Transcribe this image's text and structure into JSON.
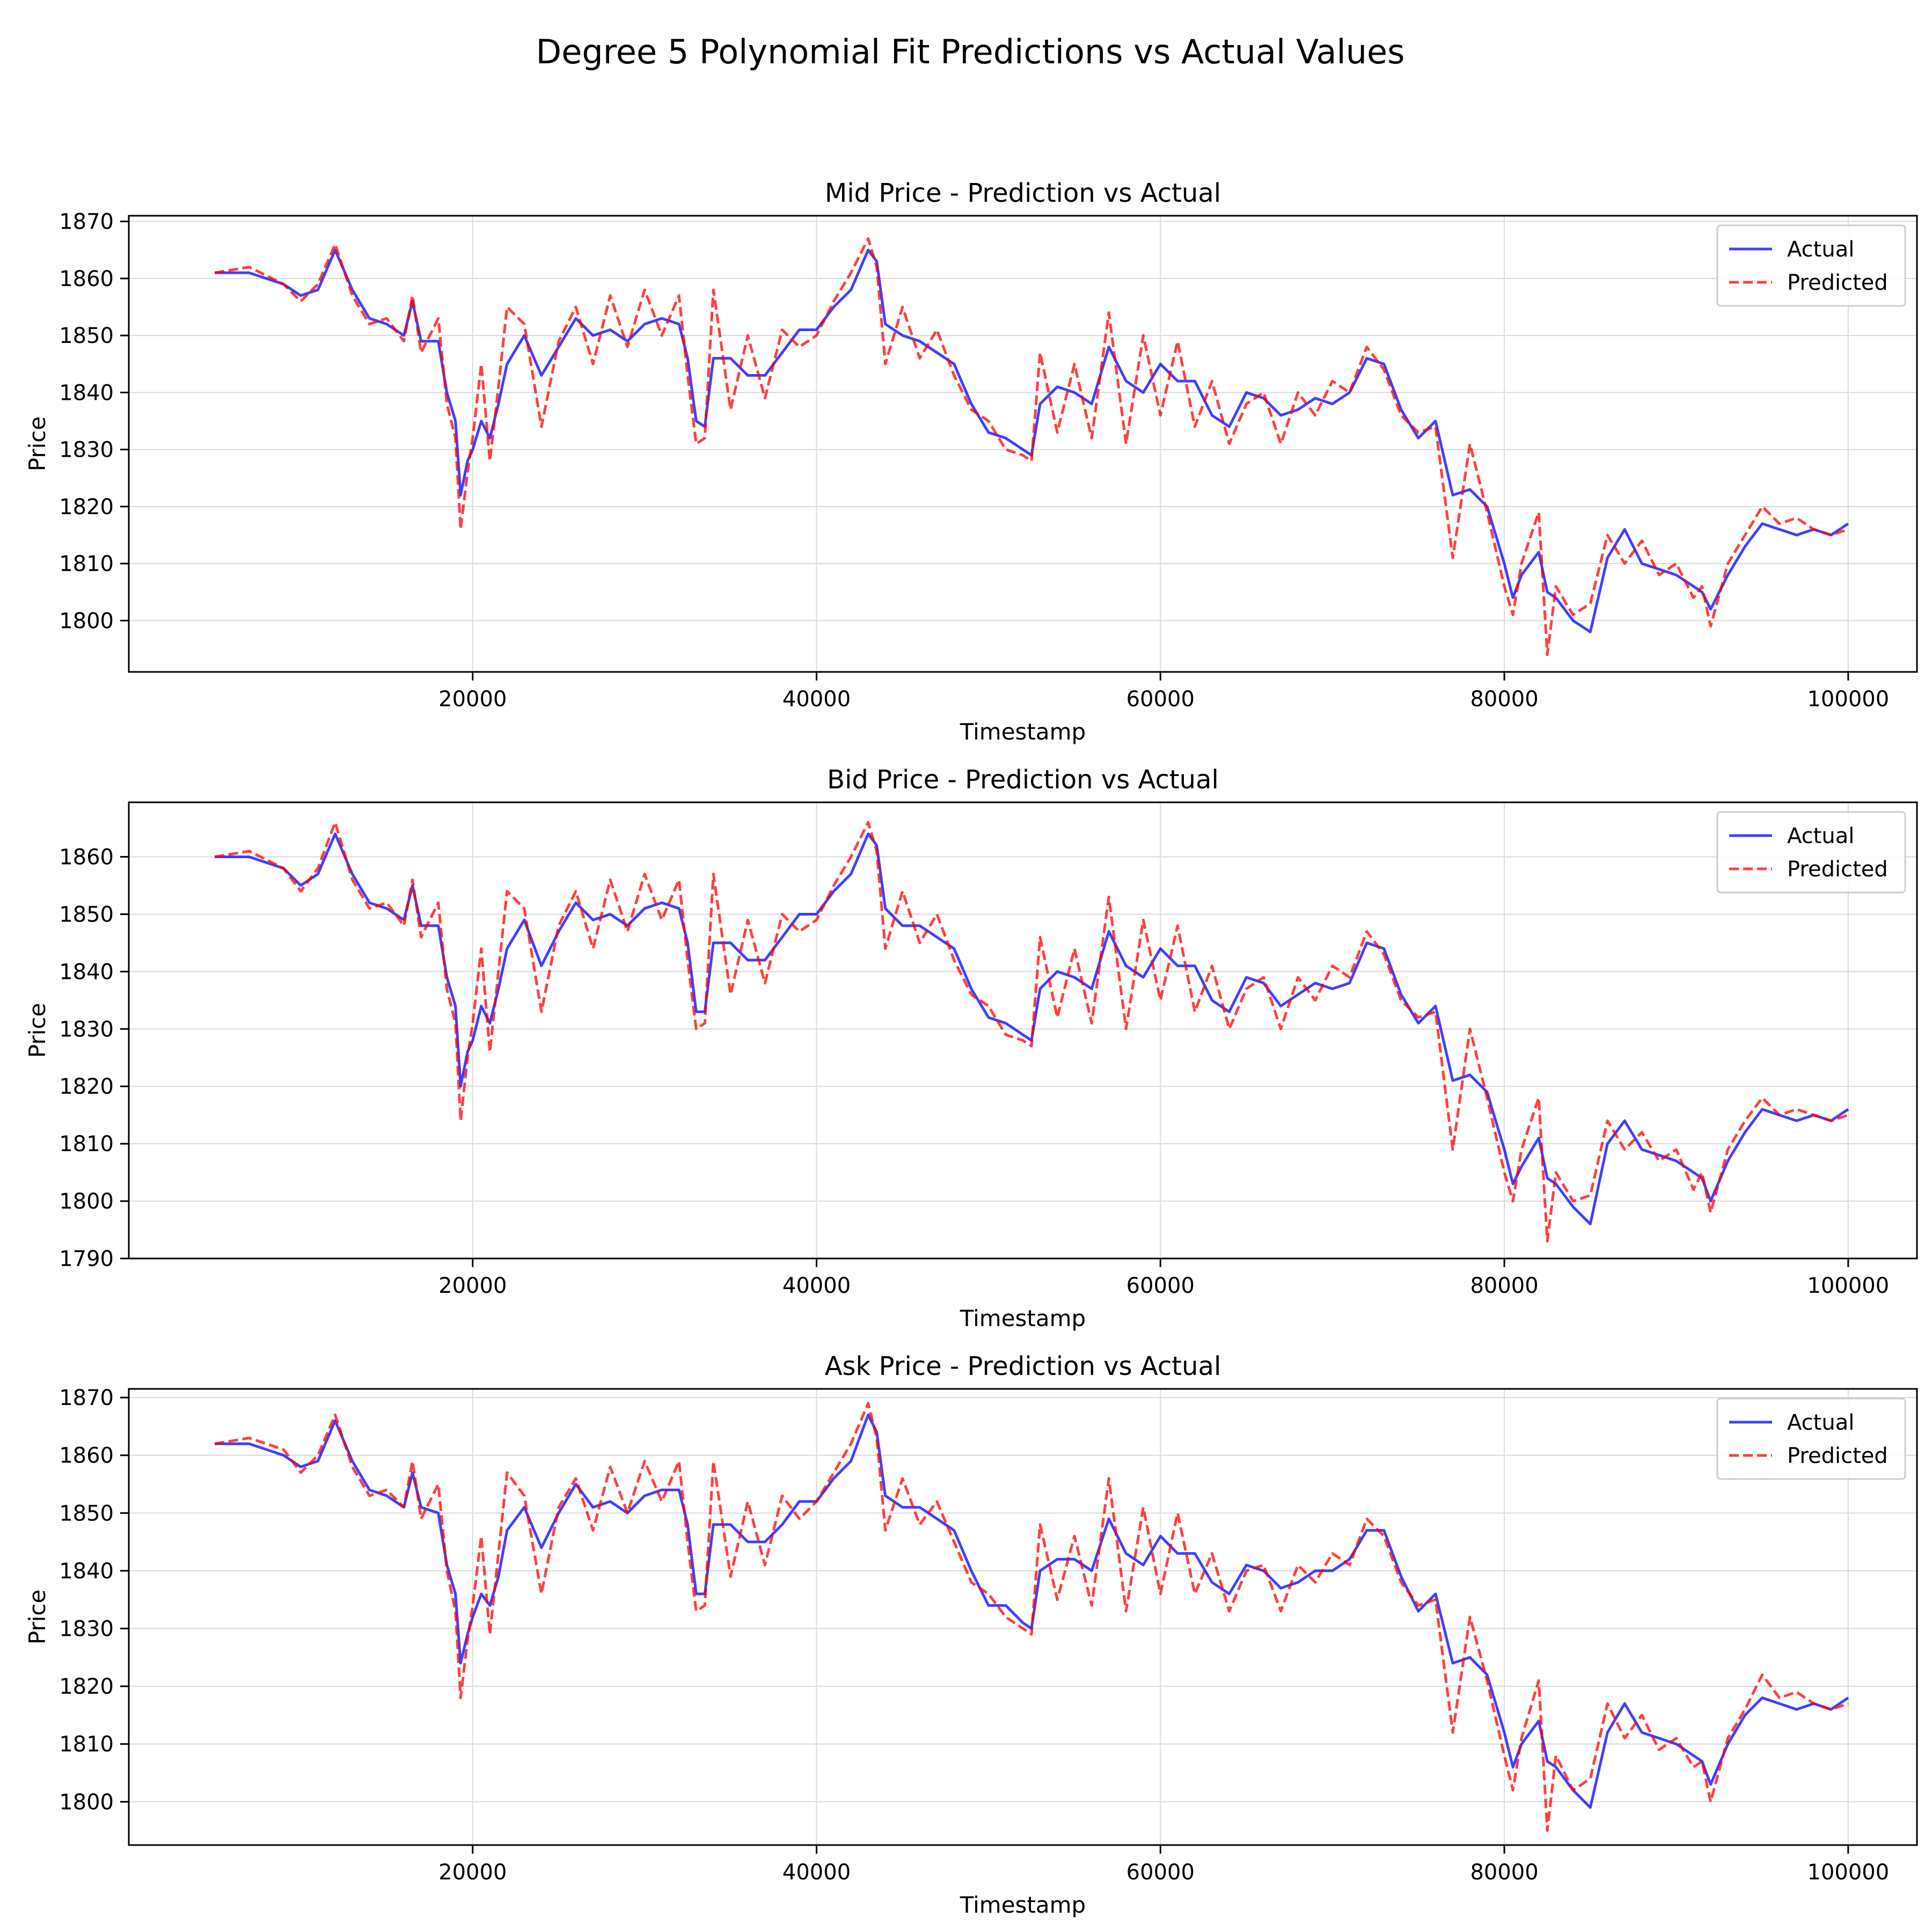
{
  "figure": {
    "title": "Degree 5 Polynomial Fit Predictions vs Actual Values"
  },
  "colors": {
    "actual": "#0000ff",
    "predicted": "#ff0000",
    "grid": "#d9d9d9",
    "axis": "#000000"
  },
  "chart_data": [
    {
      "type": "line",
      "title": "Mid Price - Prediction vs Actual",
      "xlabel": "Timestamp",
      "ylabel": "Price",
      "xlim": [
        0,
        104000
      ],
      "ylim": [
        1791,
        1871
      ],
      "xticks": [
        20000,
        40000,
        60000,
        80000,
        100000
      ],
      "yticks": [
        1800,
        1810,
        1820,
        1830,
        1840,
        1850,
        1860,
        1870
      ],
      "grid": true,
      "legend": "top-right",
      "x": [
        5000,
        7000,
        9000,
        10000,
        11000,
        12000,
        13000,
        14000,
        15000,
        16000,
        16500,
        17000,
        18000,
        18500,
        19000,
        19300,
        19700,
        20000,
        20500,
        21000,
        21500,
        22000,
        23000,
        24000,
        25000,
        26000,
        27000,
        28000,
        29000,
        30000,
        31000,
        32000,
        32500,
        33000,
        33500,
        34000,
        35000,
        36000,
        37000,
        38000,
        39000,
        40000,
        41000,
        42000,
        43000,
        43500,
        44000,
        45000,
        46000,
        47000,
        48000,
        49000,
        50000,
        51000,
        52000,
        52500,
        53000,
        54000,
        55000,
        56000,
        57000,
        58000,
        59000,
        60000,
        61000,
        62000,
        63000,
        64000,
        65000,
        66000,
        67000,
        68000,
        69000,
        70000,
        71000,
        72000,
        73000,
        74000,
        75000,
        76000,
        77000,
        78000,
        79000,
        80000,
        80500,
        81000,
        82000,
        82500,
        83000,
        84000,
        85000,
        86000,
        87000,
        88000,
        89000,
        90000,
        91000,
        91500,
        92000,
        93000,
        94000,
        95000,
        96000,
        97000,
        98000,
        99000,
        100000
      ],
      "series": [
        {
          "name": "Actual",
          "values": [
            1861,
            1861,
            1859,
            1857,
            1858,
            1865,
            1858,
            1853,
            1852,
            1850,
            1856,
            1849,
            1849,
            1840,
            1835,
            1822,
            1828,
            1830,
            1835,
            1832,
            1838,
            1845,
            1850,
            1843,
            1848,
            1853,
            1850,
            1851,
            1849,
            1852,
            1853,
            1852,
            1846,
            1835,
            1834,
            1846,
            1846,
            1843,
            1843,
            1847,
            1851,
            1851,
            1855,
            1858,
            1865,
            1863,
            1852,
            1850,
            1849,
            1847,
            1845,
            1838,
            1833,
            1832,
            1830,
            1829,
            1838,
            1841,
            1840,
            1838,
            1848,
            1842,
            1840,
            1845,
            1842,
            1842,
            1836,
            1834,
            1840,
            1839,
            1836,
            1837,
            1839,
            1838,
            1840,
            1846,
            1845,
            1837,
            1832,
            1835,
            1822,
            1823,
            1820,
            1810,
            1804,
            1808,
            1812,
            1805,
            1804,
            1800,
            1798,
            1811,
            1816,
            1810,
            1809,
            1808,
            1806,
            1805,
            1802,
            1808,
            1813,
            1817,
            1816,
            1815,
            1816,
            1815,
            1817
          ]
        },
        {
          "name": "Predicted",
          "values": [
            1861,
            1862,
            1859,
            1856,
            1859,
            1866,
            1857,
            1852,
            1853,
            1849,
            1857,
            1847,
            1853,
            1838,
            1832,
            1816,
            1826,
            1832,
            1845,
            1828,
            1841,
            1855,
            1852,
            1834,
            1849,
            1855,
            1845,
            1857,
            1848,
            1858,
            1850,
            1857,
            1843,
            1831,
            1832,
            1858,
            1837,
            1850,
            1839,
            1851,
            1848,
            1850,
            1856,
            1861,
            1867,
            1862,
            1845,
            1855,
            1846,
            1851,
            1843,
            1837,
            1835,
            1830,
            1829,
            1828,
            1847,
            1833,
            1845,
            1832,
            1854,
            1831,
            1850,
            1836,
            1849,
            1834,
            1842,
            1831,
            1838,
            1840,
            1831,
            1840,
            1836,
            1842,
            1840,
            1848,
            1844,
            1836,
            1833,
            1834,
            1811,
            1831,
            1819,
            1806,
            1801,
            1810,
            1819,
            1794,
            1806,
            1801,
            1803,
            1815,
            1810,
            1814,
            1808,
            1810,
            1804,
            1806,
            1799,
            1810,
            1815,
            1820,
            1817,
            1818,
            1816,
            1815,
            1816
          ]
        }
      ]
    },
    {
      "type": "line",
      "title": "Bid Price - Prediction vs Actual",
      "xlabel": "Timestamp",
      "ylabel": "Price",
      "xlim": [
        0,
        104000
      ],
      "ylim": [
        1790,
        1869.5
      ],
      "xticks": [
        20000,
        40000,
        60000,
        80000,
        100000
      ],
      "yticks": [
        1790,
        1800,
        1810,
        1820,
        1830,
        1840,
        1850,
        1860
      ],
      "grid": true,
      "legend": "top-right",
      "x": [
        5000,
        7000,
        9000,
        10000,
        11000,
        12000,
        13000,
        14000,
        15000,
        16000,
        16500,
        17000,
        18000,
        18500,
        19000,
        19300,
        19700,
        20000,
        20500,
        21000,
        21500,
        22000,
        23000,
        24000,
        25000,
        26000,
        27000,
        28000,
        29000,
        30000,
        31000,
        32000,
        32500,
        33000,
        33500,
        34000,
        35000,
        36000,
        37000,
        38000,
        39000,
        40000,
        41000,
        42000,
        43000,
        43500,
        44000,
        45000,
        46000,
        47000,
        48000,
        49000,
        50000,
        51000,
        52000,
        52500,
        53000,
        54000,
        55000,
        56000,
        57000,
        58000,
        59000,
        60000,
        61000,
        62000,
        63000,
        64000,
        65000,
        66000,
        67000,
        68000,
        69000,
        70000,
        71000,
        72000,
        73000,
        74000,
        75000,
        76000,
        77000,
        78000,
        79000,
        80000,
        80500,
        81000,
        82000,
        82500,
        83000,
        84000,
        85000,
        86000,
        87000,
        88000,
        89000,
        90000,
        91000,
        91500,
        92000,
        93000,
        94000,
        95000,
        96000,
        97000,
        98000,
        99000,
        100000
      ],
      "series": [
        {
          "name": "Actual",
          "values": [
            1860,
            1860,
            1858,
            1855,
            1857,
            1864,
            1857,
            1852,
            1851,
            1849,
            1855,
            1848,
            1848,
            1839,
            1834,
            1820,
            1826,
            1828,
            1834,
            1831,
            1837,
            1844,
            1849,
            1841,
            1847,
            1852,
            1849,
            1850,
            1848,
            1851,
            1852,
            1851,
            1845,
            1833,
            1833,
            1845,
            1845,
            1842,
            1842,
            1846,
            1850,
            1850,
            1854,
            1857,
            1864,
            1862,
            1851,
            1848,
            1848,
            1846,
            1844,
            1837,
            1832,
            1831,
            1829,
            1828,
            1837,
            1840,
            1839,
            1837,
            1847,
            1841,
            1839,
            1844,
            1841,
            1841,
            1835,
            1833,
            1839,
            1838,
            1834,
            1836,
            1838,
            1837,
            1838,
            1845,
            1844,
            1836,
            1831,
            1834,
            1821,
            1822,
            1819,
            1809,
            1803,
            1806,
            1811,
            1804,
            1803,
            1799,
            1796,
            1810,
            1814,
            1809,
            1808,
            1807,
            1805,
            1804,
            1800,
            1807,
            1812,
            1816,
            1815,
            1814,
            1815,
            1814,
            1816
          ]
        },
        {
          "name": "Predicted",
          "values": [
            1860,
            1861,
            1858,
            1854,
            1858,
            1866,
            1856,
            1851,
            1852,
            1848,
            1856,
            1846,
            1852,
            1837,
            1831,
            1814,
            1825,
            1831,
            1844,
            1826,
            1840,
            1854,
            1851,
            1833,
            1848,
            1854,
            1844,
            1856,
            1847,
            1857,
            1849,
            1856,
            1842,
            1830,
            1831,
            1857,
            1836,
            1849,
            1838,
            1850,
            1847,
            1849,
            1855,
            1860,
            1866,
            1861,
            1844,
            1854,
            1845,
            1850,
            1842,
            1836,
            1834,
            1829,
            1828,
            1827,
            1846,
            1832,
            1844,
            1831,
            1853,
            1830,
            1849,
            1835,
            1848,
            1833,
            1841,
            1830,
            1837,
            1839,
            1830,
            1839,
            1835,
            1841,
            1839,
            1847,
            1843,
            1835,
            1832,
            1833,
            1809,
            1830,
            1818,
            1805,
            1800,
            1809,
            1818,
            1793,
            1805,
            1800,
            1801,
            1814,
            1809,
            1812,
            1807,
            1809,
            1802,
            1805,
            1798,
            1809,
            1814,
            1818,
            1815,
            1816,
            1815,
            1814,
            1815
          ]
        }
      ]
    },
    {
      "type": "line",
      "title": "Ask Price - Prediction vs Actual",
      "xlabel": "Timestamp",
      "ylabel": "Price",
      "xlim": [
        0,
        104000
      ],
      "ylim": [
        1792.5,
        1871.5
      ],
      "xticks": [
        20000,
        40000,
        60000,
        80000,
        100000
      ],
      "yticks": [
        1800,
        1810,
        1820,
        1830,
        1840,
        1850,
        1860,
        1870
      ],
      "grid": true,
      "legend": "top-right",
      "x": [
        5000,
        7000,
        9000,
        10000,
        11000,
        12000,
        13000,
        14000,
        15000,
        16000,
        16500,
        17000,
        18000,
        18500,
        19000,
        19300,
        19700,
        20000,
        20500,
        21000,
        21500,
        22000,
        23000,
        24000,
        25000,
        26000,
        27000,
        28000,
        29000,
        30000,
        31000,
        32000,
        32500,
        33000,
        33500,
        34000,
        35000,
        36000,
        37000,
        38000,
        39000,
        40000,
        41000,
        42000,
        43000,
        43500,
        44000,
        45000,
        46000,
        47000,
        48000,
        49000,
        50000,
        51000,
        52000,
        52500,
        53000,
        54000,
        55000,
        56000,
        57000,
        58000,
        59000,
        60000,
        61000,
        62000,
        63000,
        64000,
        65000,
        66000,
        67000,
        68000,
        69000,
        70000,
        71000,
        72000,
        73000,
        74000,
        75000,
        76000,
        77000,
        78000,
        79000,
        80000,
        80500,
        81000,
        82000,
        82500,
        83000,
        84000,
        85000,
        86000,
        87000,
        88000,
        89000,
        90000,
        91000,
        91500,
        92000,
        93000,
        94000,
        95000,
        96000,
        97000,
        98000,
        99000,
        100000
      ],
      "series": [
        {
          "name": "Actual",
          "values": [
            1862,
            1862,
            1860,
            1858,
            1859,
            1866,
            1859,
            1854,
            1853,
            1851,
            1857,
            1851,
            1850,
            1841,
            1836,
            1824,
            1829,
            1832,
            1836,
            1834,
            1839,
            1847,
            1851,
            1844,
            1850,
            1855,
            1851,
            1852,
            1850,
            1853,
            1854,
            1854,
            1848,
            1836,
            1836,
            1848,
            1848,
            1845,
            1845,
            1848,
            1852,
            1852,
            1856,
            1859,
            1867,
            1864,
            1853,
            1851,
            1851,
            1849,
            1847,
            1840,
            1834,
            1834,
            1831,
            1830,
            1840,
            1842,
            1842,
            1840,
            1849,
            1843,
            1841,
            1846,
            1843,
            1843,
            1838,
            1836,
            1841,
            1840,
            1837,
            1838,
            1840,
            1840,
            1842,
            1847,
            1847,
            1839,
            1833,
            1836,
            1824,
            1825,
            1822,
            1812,
            1806,
            1810,
            1814,
            1807,
            1806,
            1802,
            1799,
            1812,
            1817,
            1812,
            1811,
            1810,
            1808,
            1807,
            1803,
            1810,
            1815,
            1818,
            1817,
            1816,
            1817,
            1816,
            1818
          ]
        },
        {
          "name": "Predicted",
          "values": [
            1862,
            1863,
            1861,
            1857,
            1860,
            1867,
            1858,
            1853,
            1854,
            1851,
            1859,
            1849,
            1855,
            1840,
            1833,
            1818,
            1828,
            1834,
            1846,
            1829,
            1843,
            1857,
            1853,
            1836,
            1851,
            1856,
            1847,
            1858,
            1850,
            1859,
            1852,
            1859,
            1845,
            1833,
            1834,
            1859,
            1839,
            1852,
            1841,
            1853,
            1849,
            1852,
            1857,
            1862,
            1869,
            1863,
            1847,
            1856,
            1848,
            1852,
            1845,
            1838,
            1836,
            1832,
            1830,
            1829,
            1848,
            1835,
            1846,
            1834,
            1856,
            1833,
            1851,
            1836,
            1850,
            1836,
            1843,
            1833,
            1840,
            1841,
            1833,
            1841,
            1838,
            1843,
            1841,
            1849,
            1846,
            1838,
            1834,
            1835,
            1812,
            1832,
            1821,
            1808,
            1802,
            1811,
            1821,
            1795,
            1808,
            1802,
            1804,
            1817,
            1811,
            1815,
            1809,
            1811,
            1806,
            1807,
            1800,
            1811,
            1816,
            1822,
            1818,
            1819,
            1817,
            1816,
            1817
          ]
        }
      ]
    }
  ]
}
